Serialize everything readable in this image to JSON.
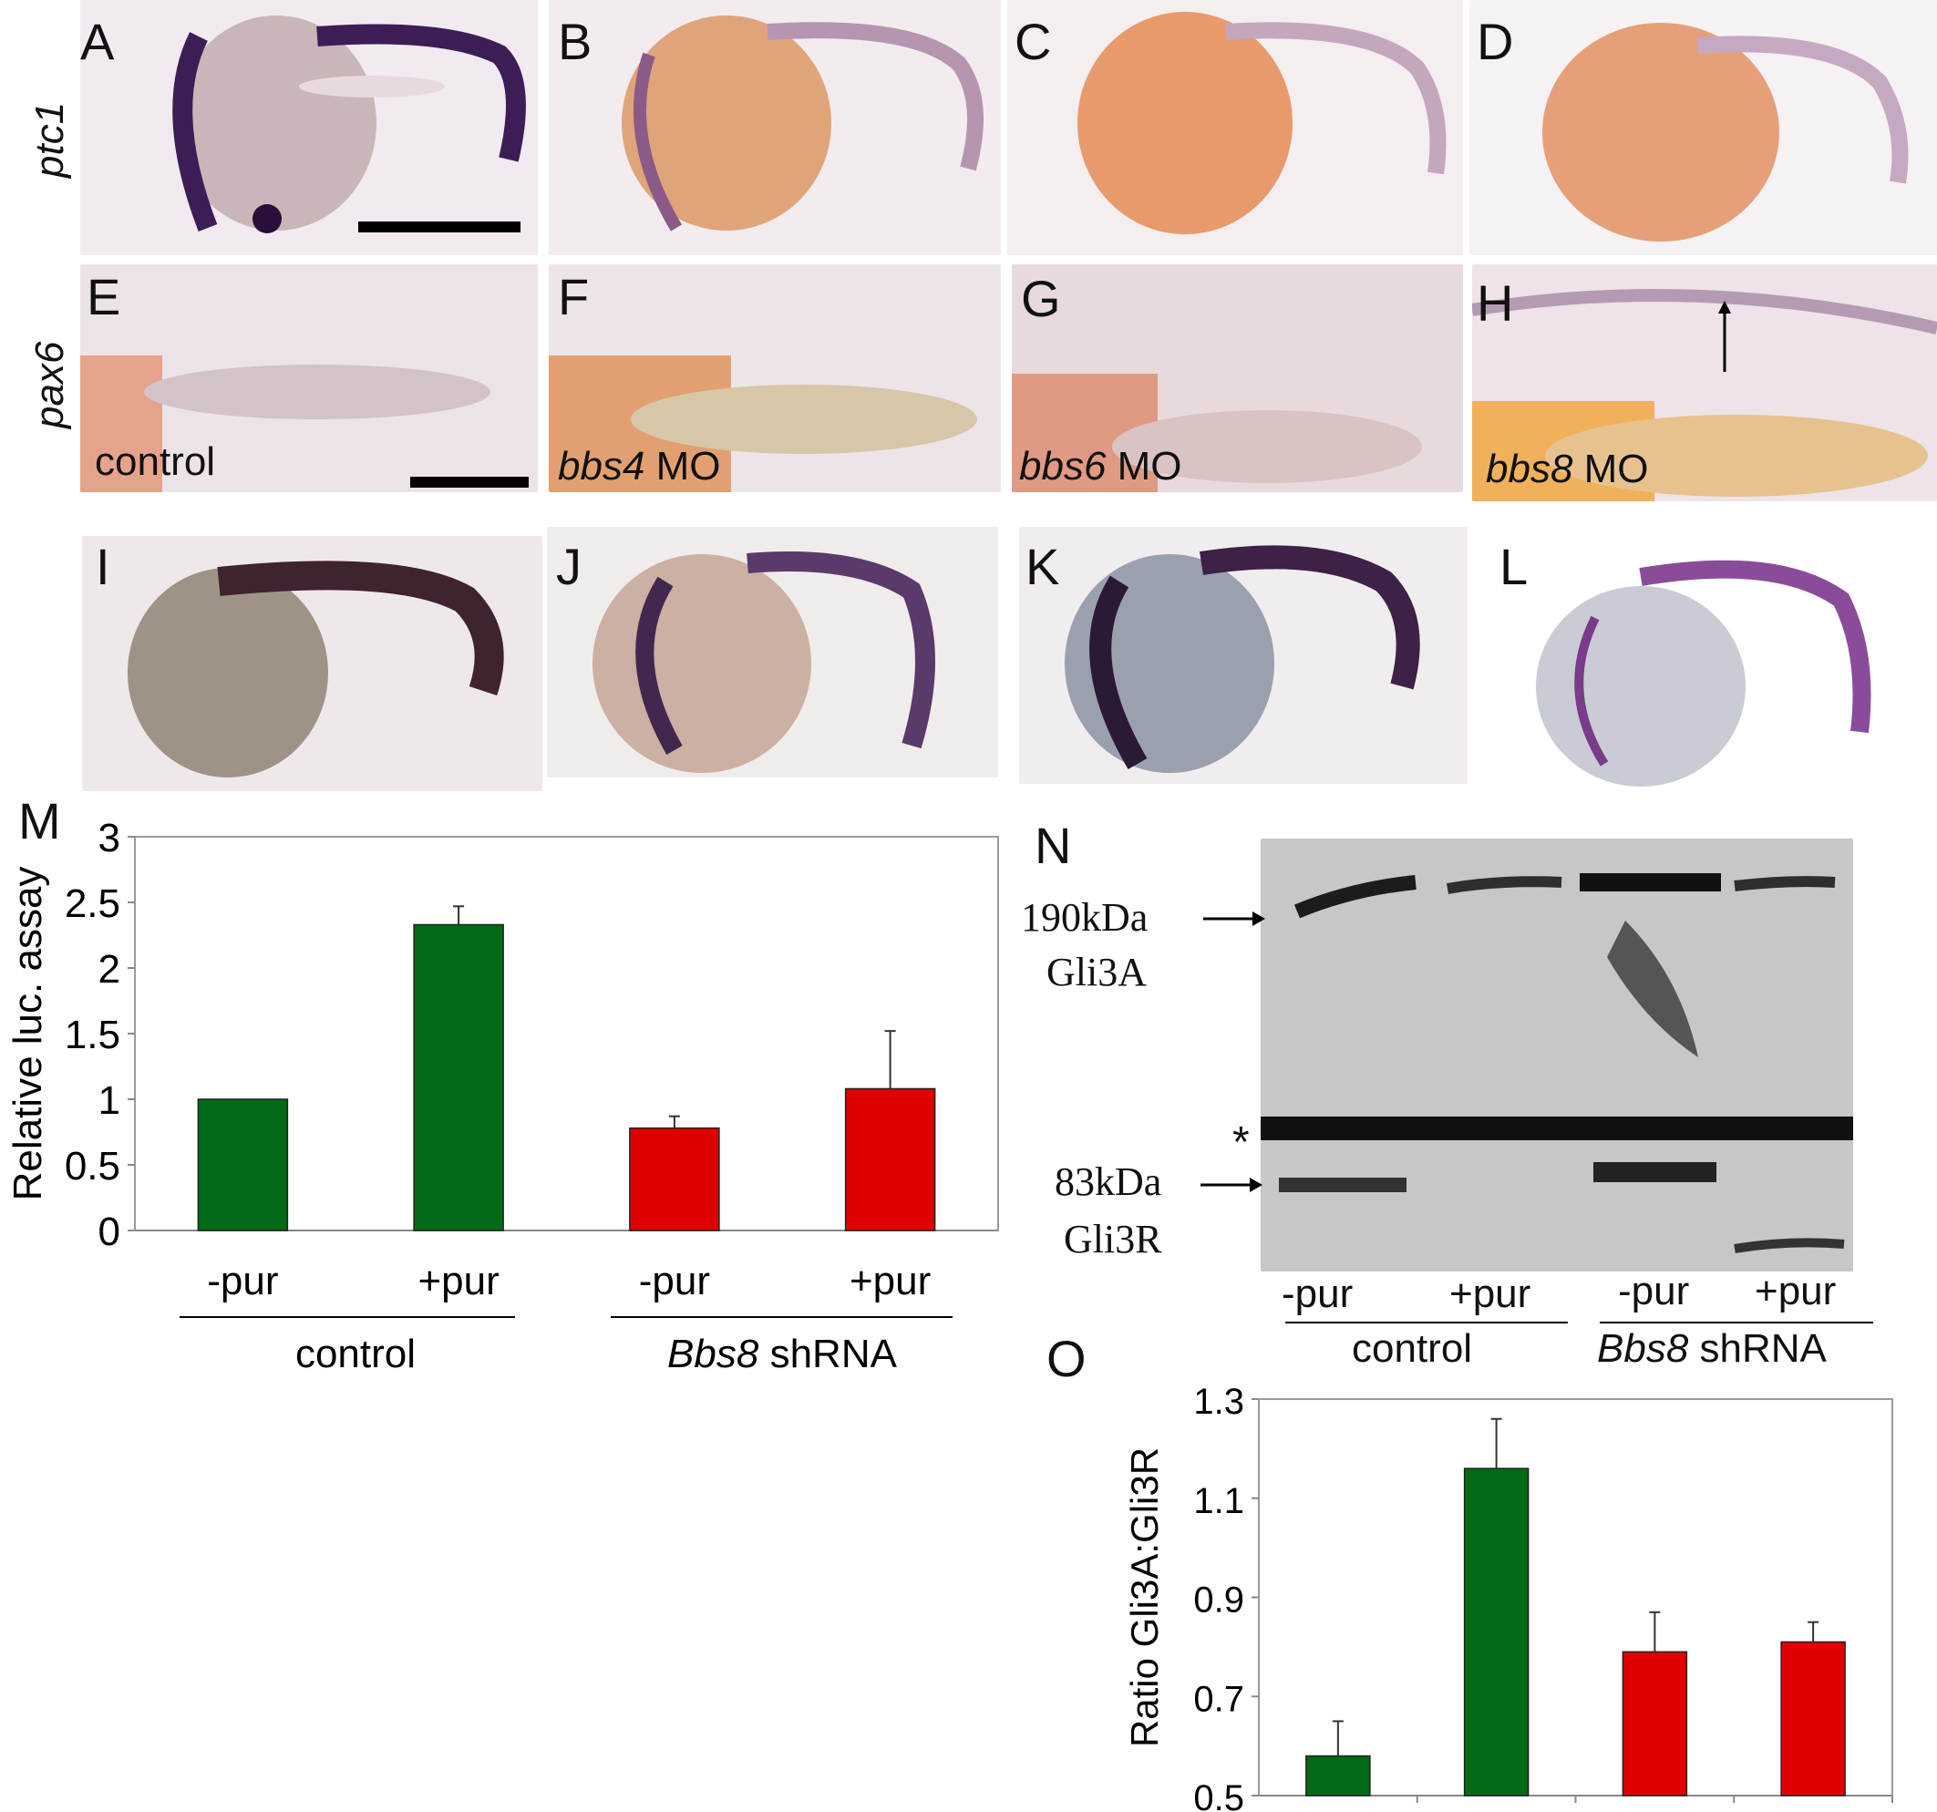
{
  "panels": {
    "A": "A",
    "B": "B",
    "C": "C",
    "D": "D",
    "E": "E",
    "F": "F",
    "G": "G",
    "H": "H",
    "I": "I",
    "J": "J",
    "K": "K",
    "L": "L",
    "M": "M",
    "N": "N",
    "O": "O"
  },
  "rows": {
    "ptc1": "ptc1",
    "pax6": "pax6"
  },
  "conditions": {
    "control": "control",
    "bbs4_gene": "bbs4",
    "bbs4_suffix": " MO",
    "bbs6_gene": "bbs6",
    "bbs6_suffix": " MO",
    "bbs8_gene": "bbs8",
    "bbs8_suffix": " MO"
  },
  "colors": {
    "green": "#006a17",
    "red": "#e00000",
    "stain": "#4a2b5a",
    "yolk": "#e2a57c"
  },
  "western": {
    "band_190": "190kDa",
    "label_190": "Gli3A",
    "band_83": "83kDa",
    "label_83": "Gli3R",
    "asterisk": "*",
    "lanes": [
      "-pur",
      "+pur",
      "-pur",
      "+pur"
    ],
    "group_control": "control",
    "group_bbs8_gene": "Bbs8",
    "group_bbs8_suffix": " shRNA"
  },
  "chart_data": [
    {
      "panel": "M",
      "type": "bar",
      "categories": [
        "-pur",
        "+pur",
        "-pur",
        "+pur"
      ],
      "groups": [
        "control",
        "Bbs8 shRNA"
      ],
      "values": [
        1.0,
        2.33,
        0.78,
        1.08
      ],
      "errors": [
        0,
        0.14,
        0.09,
        0.44
      ],
      "bar_colors": [
        "#006a17",
        "#006a17",
        "#e00000",
        "#e00000"
      ],
      "ylabel": "Relative luc. assay",
      "ylim": [
        0,
        3
      ],
      "yticks": [
        "0",
        "0.5",
        "1",
        "1.5",
        "2",
        "2.5",
        "3"
      ]
    },
    {
      "panel": "O",
      "type": "bar",
      "categories": [
        "",
        "",
        "",
        ""
      ],
      "values": [
        0.58,
        1.16,
        0.79,
        0.81
      ],
      "errors": [
        0.07,
        0.1,
        0.08,
        0.04
      ],
      "bar_colors": [
        "#006a17",
        "#006a17",
        "#e00000",
        "#e00000"
      ],
      "ylabel": "Ratio Gli3A:Gli3R",
      "ylim": [
        0.5,
        1.3
      ],
      "yticks": [
        "0.5",
        "0.7",
        "0.9",
        "1.1",
        "1.3"
      ]
    }
  ]
}
